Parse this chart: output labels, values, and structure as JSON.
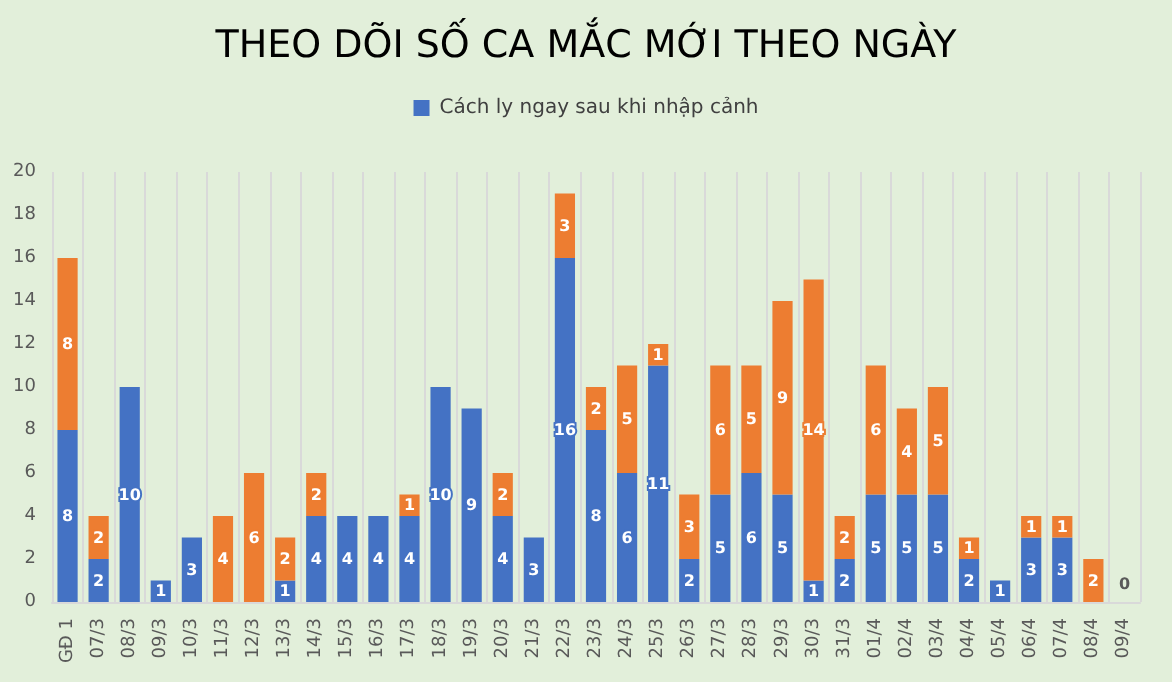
{
  "chart_data": {
    "type": "bar",
    "title": "THEO DÕI SỐ CA MẮC MỚI THEO NGÀY",
    "stacked": true,
    "grid": "x",
    "legend": "top",
    "categories": [
      "GĐ 1",
      "07/3",
      "08/3",
      "09/3",
      "10/3",
      "11/3",
      "12/3",
      "13/3",
      "14/3",
      "15/3",
      "16/3",
      "17/3",
      "18/3",
      "19/3",
      "20/3",
      "21/3",
      "22/3",
      "23/3",
      "24/3",
      "25/3",
      "26/3",
      "27/3",
      "28/3",
      "29/3",
      "30/3",
      "31/3",
      "01/4",
      "02/4",
      "03/4",
      "04/4",
      "05/4",
      "06/4",
      "07/4",
      "08/4",
      "09/4"
    ],
    "ylim": [
      0,
      20
    ],
    "yticks": [
      0,
      2,
      4,
      6,
      8,
      10,
      12,
      14,
      16,
      18,
      20
    ],
    "series": [
      {
        "name": "Cách ly ngay sau khi nhập cảnh",
        "color": "#4472c4",
        "values": [
          8,
          2,
          10,
          1,
          3,
          0,
          0,
          1,
          4,
          4,
          4,
          4,
          10,
          9,
          4,
          3,
          16,
          8,
          6,
          11,
          2,
          5,
          6,
          5,
          1,
          2,
          5,
          5,
          5,
          2,
          1,
          3,
          3,
          0,
          0
        ],
        "value_labels": [
          "8",
          "2",
          "10",
          "1",
          "3",
          null,
          null,
          "1",
          "4",
          "4",
          "4",
          "4",
          "10",
          "9",
          "4",
          "3",
          "16",
          "8",
          "6",
          "11",
          "2",
          "5",
          "6",
          "5",
          "1",
          "2",
          "5",
          "5",
          "5",
          "2",
          "1",
          "3",
          "3",
          null,
          "0"
        ]
      },
      {
        "color": "#ed7d31",
        "values": [
          8,
          2,
          0,
          0,
          0,
          4,
          6,
          2,
          2,
          0,
          0,
          1,
          0,
          0,
          2,
          0,
          3,
          2,
          5,
          1,
          3,
          6,
          5,
          9,
          14,
          2,
          6,
          4,
          5,
          1,
          0,
          1,
          1,
          2,
          0
        ],
        "value_labels": [
          "8",
          "2",
          null,
          null,
          null,
          "4",
          "6",
          "2",
          "2",
          null,
          null,
          "1",
          null,
          null,
          "2",
          null,
          "3",
          "2",
          "5",
          "1",
          "3",
          "6",
          "5",
          "9",
          "14",
          "2",
          "6",
          "4",
          "5",
          "1",
          null,
          "1",
          "1",
          "2",
          null
        ]
      }
    ]
  }
}
